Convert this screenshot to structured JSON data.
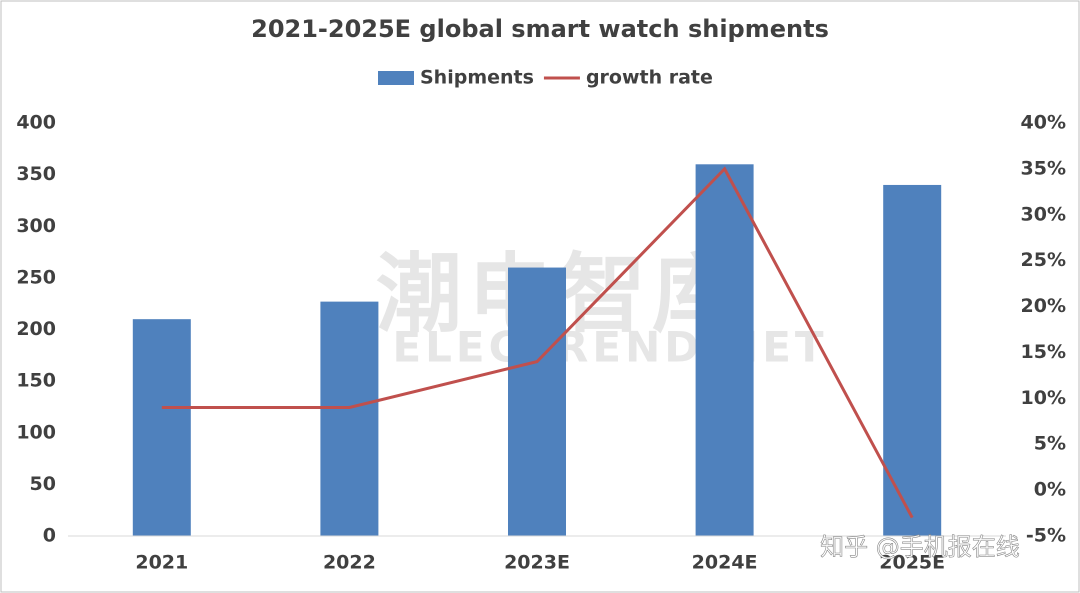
{
  "chart_data": {
    "type": "bar-line",
    "title": "2021-2025E global smart watch shipments",
    "categories": [
      "2021",
      "2022",
      "2023E",
      "2024E",
      "2025E"
    ],
    "series": [
      {
        "name": "Shipments",
        "type": "bar",
        "color": "#4f81bd",
        "values": [
          210,
          227,
          260,
          360,
          340
        ]
      },
      {
        "name": "growth rate",
        "type": "line",
        "color": "#c0504d",
        "axis": "y2",
        "values": [
          9,
          9,
          14,
          35,
          -3
        ]
      }
    ],
    "ylim": [
      0,
      400
    ],
    "yticks": [
      0,
      50,
      100,
      150,
      200,
      250,
      300,
      350,
      400
    ],
    "y2lim": [
      -5,
      40
    ],
    "y2ticks": [
      {
        "value": -5,
        "label": "-5%"
      },
      {
        "value": 0,
        "label": "0%"
      },
      {
        "value": 5,
        "label": "5%"
      },
      {
        "value": 10,
        "label": "10%"
      },
      {
        "value": 15,
        "label": "15%"
      },
      {
        "value": 20,
        "label": "20%"
      },
      {
        "value": 25,
        "label": "25%"
      },
      {
        "value": 30,
        "label": "30%"
      },
      {
        "value": 35,
        "label": "35%"
      },
      {
        "value": 40,
        "label": "40%"
      }
    ],
    "grid": false,
    "legend": "top",
    "annotations": [
      "潮电智库",
      "ELECTREND.NET",
      "知乎 @手机报在线"
    ]
  }
}
